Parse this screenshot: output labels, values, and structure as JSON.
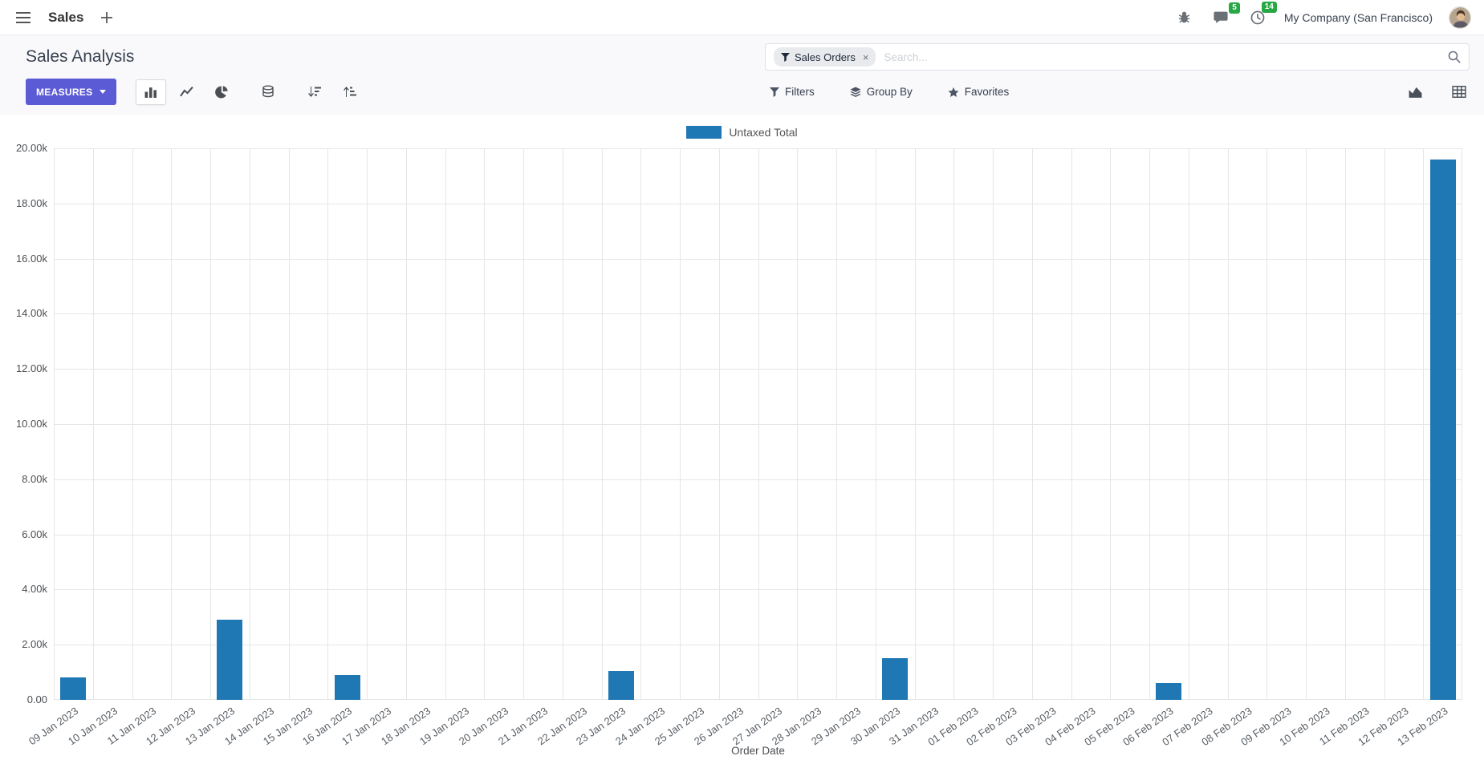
{
  "navbar": {
    "app_name": "Sales",
    "company": "My Company (San Francisco)",
    "messages_badge": "5",
    "activities_badge": "14"
  },
  "control_panel": {
    "title": "Sales Analysis",
    "search": {
      "facet": "Sales Orders",
      "facet_remove": "×",
      "placeholder": "Search..."
    },
    "measures_label": "MEASURES",
    "filters_label": "Filters",
    "group_by_label": "Group By",
    "favorites_label": "Favorites"
  },
  "colors": {
    "primary_button": "#5c5bd6",
    "badge_green": "#28a745",
    "bar_blue": "#1f77b4"
  },
  "icons": {
    "menu": "hamburger",
    "new": "plus",
    "debug": "bug",
    "messages": "chat-bubble",
    "activities": "clock",
    "search": "magnifier",
    "facet": "funnel",
    "filters": "funnel",
    "group_by": "layers",
    "favorites": "star",
    "chart_bar": "bar-chart",
    "chart_line": "line-chart",
    "chart_pie": "pie-chart",
    "stacked": "database",
    "sort_desc": "sort-amount-desc",
    "sort_asc": "sort-amount-asc",
    "view_graph": "area-chart",
    "view_pivot": "table-grid"
  },
  "chart_data": {
    "type": "bar",
    "title": "",
    "legend": [
      "Untaxed Total"
    ],
    "series_color": "#1f77b4",
    "xlabel": "Order Date",
    "ylabel": "",
    "ylim": [
      0,
      20000
    ],
    "ytick_step": 2000,
    "ytick_labels": [
      "0.00",
      "2.00k",
      "4.00k",
      "6.00k",
      "8.00k",
      "10.00k",
      "12.00k",
      "14.00k",
      "16.00k",
      "18.00k",
      "20.00k"
    ],
    "grid": true,
    "legend_position": "top",
    "categories": [
      "09 Jan 2023",
      "10 Jan 2023",
      "11 Jan 2023",
      "12 Jan 2023",
      "13 Jan 2023",
      "14 Jan 2023",
      "15 Jan 2023",
      "16 Jan 2023",
      "17 Jan 2023",
      "18 Jan 2023",
      "19 Jan 2023",
      "20 Jan 2023",
      "21 Jan 2023",
      "22 Jan 2023",
      "23 Jan 2023",
      "24 Jan 2023",
      "25 Jan 2023",
      "26 Jan 2023",
      "27 Jan 2023",
      "28 Jan 2023",
      "29 Jan 2023",
      "30 Jan 2023",
      "31 Jan 2023",
      "01 Feb 2023",
      "02 Feb 2023",
      "03 Feb 2023",
      "04 Feb 2023",
      "05 Feb 2023",
      "06 Feb 2023",
      "07 Feb 2023",
      "08 Feb 2023",
      "09 Feb 2023",
      "10 Feb 2023",
      "11 Feb 2023",
      "12 Feb 2023",
      "13 Feb 2023"
    ],
    "values": [
      800,
      0,
      0,
      0,
      2900,
      0,
      0,
      900,
      0,
      0,
      0,
      0,
      0,
      0,
      1050,
      0,
      0,
      0,
      0,
      0,
      0,
      1500,
      0,
      0,
      0,
      0,
      0,
      0,
      600,
      0,
      0,
      0,
      0,
      0,
      0,
      19600
    ]
  }
}
